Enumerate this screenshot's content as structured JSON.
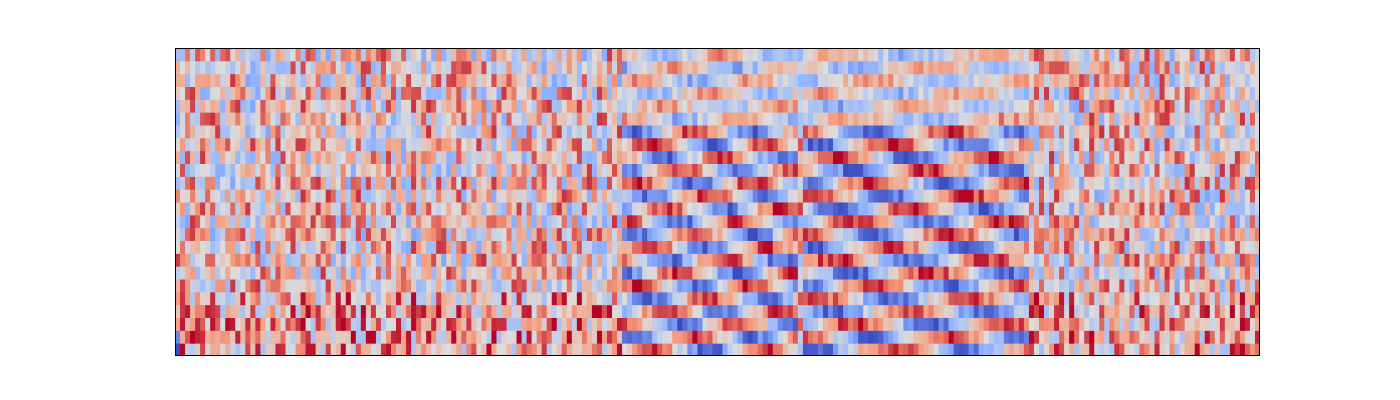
{
  "chart_data": {
    "type": "heatmap",
    "title": "",
    "xlabel": "",
    "ylabel": "",
    "axes_visible": false,
    "grid": false,
    "legend": "none",
    "colormap": "coolwarm",
    "colormap_stops": [
      "#3b4cc0",
      "#8db0fe",
      "#dddddd",
      "#f49a7b",
      "#b40426"
    ],
    "origin": "lower",
    "n_frames": 216,
    "n_bins": 24,
    "value_range": [
      -1,
      1
    ],
    "segments": [
      {
        "name": "noise",
        "x_range": [
          0,
          0.41
        ]
      },
      {
        "name": "harmonic-sweep-1",
        "x_range": [
          0.41,
          0.57
        ]
      },
      {
        "name": "noise-gap",
        "x_range": [
          0.57,
          0.575
        ]
      },
      {
        "name": "harmonic-sweep-2",
        "x_range": [
          0.575,
          0.785
        ]
      },
      {
        "name": "noise",
        "x_range": [
          0.785,
          1.0
        ]
      }
    ],
    "corner_value": -1
  }
}
